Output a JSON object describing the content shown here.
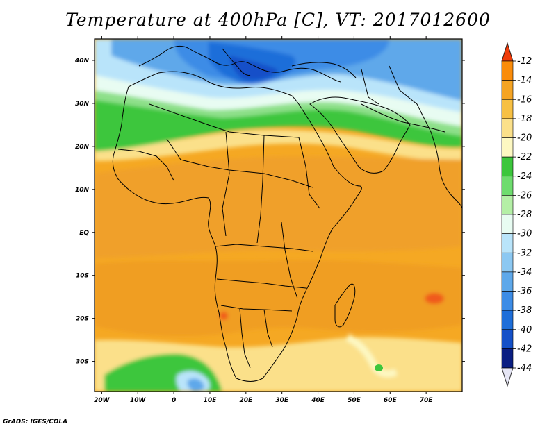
{
  "title": "Temperature at 400hPa [C], VT: 2017012600",
  "credit": "GrADS: IGES/COLA",
  "map": {
    "lat_labels": [
      "40N",
      "30N",
      "20N",
      "10N",
      "EQ",
      "10S",
      "20S",
      "30S"
    ],
    "lon_labels": [
      "20W",
      "10W",
      "0",
      "10E",
      "20E",
      "30E",
      "40E",
      "50E",
      "60E",
      "70E"
    ],
    "lon_range": [
      -22,
      80
    ],
    "lat_range": [
      -37,
      45
    ]
  },
  "colorbar": {
    "labels": [
      "-12",
      "-14",
      "-16",
      "-18",
      "-20",
      "-22",
      "-24",
      "-26",
      "-28",
      "-30",
      "-32",
      "-34",
      "-36",
      "-38",
      "-40",
      "-42",
      "-44"
    ],
    "colors": [
      "#f03c0a",
      "#fa8c0a",
      "#f5a423",
      "#f7c043",
      "#fbe08a",
      "#fdf8c2",
      "#3cc63c",
      "#6edc6e",
      "#b4efa6",
      "#e8fcf2",
      "#b9e4fa",
      "#8cc8f2",
      "#5ea8ea",
      "#3c8ce6",
      "#1e6ed9",
      "#1450c8",
      "#0a1e82",
      "#e6e6f5"
    ]
  },
  "colors": {
    "ocean_base": "#f5a823",
    "land_base": "#f2a42a",
    "coast": "#000000"
  }
}
